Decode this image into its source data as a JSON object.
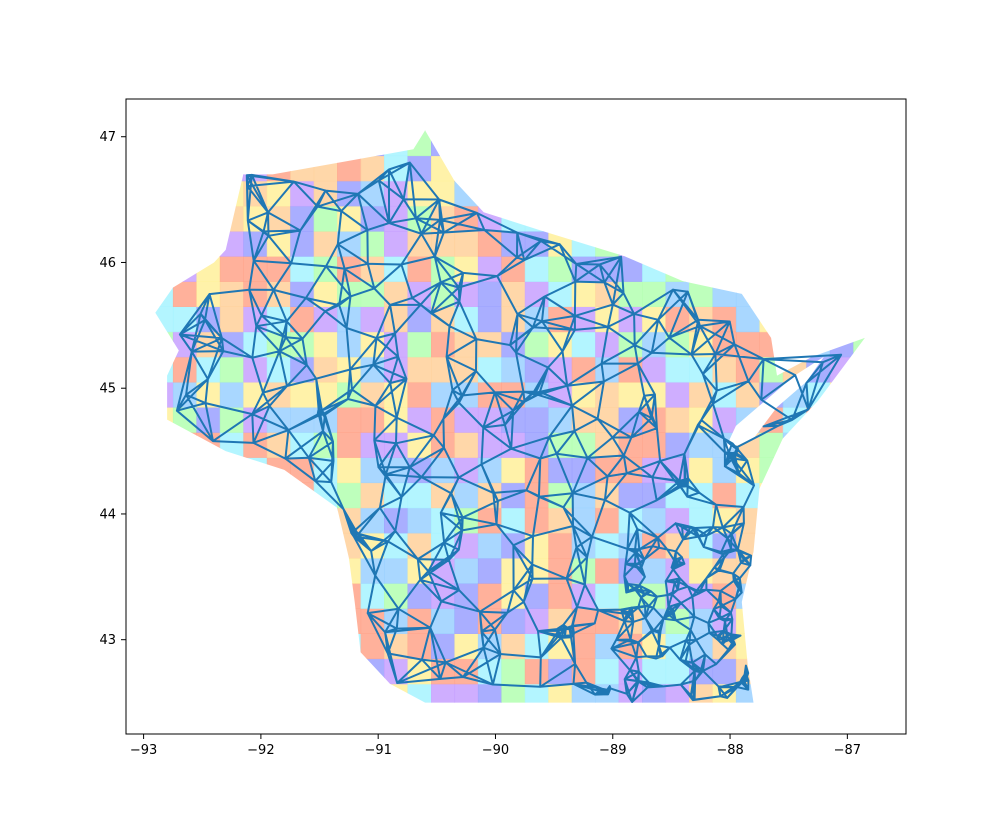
{
  "chart_data": {
    "type": "map",
    "title": "",
    "xlabel": "",
    "ylabel": "",
    "xlim": [
      -93.15,
      -86.5
    ],
    "ylim": [
      42.25,
      47.3
    ],
    "x_ticks": [
      -93,
      -92,
      -91,
      -90,
      -89,
      -88,
      -87
    ],
    "y_ticks": [
      43,
      44,
      45,
      46,
      47
    ],
    "x_tick_labels": [
      "−93",
      "−92",
      "−91",
      "−90",
      "−89",
      "−88",
      "−87"
    ],
    "y_tick_labels": [
      "43",
      "44",
      "45",
      "46",
      "47"
    ],
    "grid": false,
    "legend": "none",
    "edge_color": "#1f77b4",
    "fill_palette": [
      "#9aa0ff",
      "#a6f3ff",
      "#fff09a",
      "#ffa38a",
      "#b3ffb0",
      "#ffd09a",
      "#c7a0ff",
      "#9ad0ff"
    ],
    "state_outline": [
      [
        -92.9,
        45.6
      ],
      [
        -92.75,
        45.8
      ],
      [
        -92.4,
        46.0
      ],
      [
        -92.3,
        46.1
      ],
      [
        -92.15,
        46.7
      ],
      [
        -91.9,
        46.7
      ],
      [
        -91.3,
        46.8
      ],
      [
        -90.7,
        46.9
      ],
      [
        -90.6,
        47.05
      ],
      [
        -90.35,
        46.65
      ],
      [
        -90.1,
        46.4
      ],
      [
        -89.6,
        46.25
      ],
      [
        -88.9,
        46.05
      ],
      [
        -88.4,
        45.85
      ],
      [
        -87.9,
        45.75
      ],
      [
        -87.65,
        45.4
      ],
      [
        -87.6,
        45.1
      ],
      [
        -87.3,
        45.25
      ],
      [
        -86.85,
        45.4
      ],
      [
        -87.25,
        44.9
      ],
      [
        -87.55,
        44.6
      ],
      [
        -87.75,
        44.2
      ],
      [
        -87.8,
        43.7
      ],
      [
        -87.9,
        43.3
      ],
      [
        -87.85,
        42.8
      ],
      [
        -87.8,
        42.5
      ],
      [
        -88.8,
        42.5
      ],
      [
        -90.6,
        42.5
      ],
      [
        -90.9,
        42.65
      ],
      [
        -91.15,
        42.9
      ],
      [
        -91.2,
        43.3
      ],
      [
        -91.25,
        43.65
      ],
      [
        -91.35,
        44.05
      ],
      [
        -91.8,
        44.35
      ],
      [
        -92.3,
        44.5
      ],
      [
        -92.8,
        44.75
      ],
      [
        -92.8,
        45.1
      ],
      [
        -92.7,
        45.3
      ]
    ],
    "bay_outline": [
      [
        -88.05,
        44.5
      ],
      [
        -87.95,
        44.7
      ],
      [
        -87.7,
        44.9
      ],
      [
        -87.45,
        45.1
      ],
      [
        -87.2,
        45.25
      ],
      [
        -87.35,
        45.05
      ],
      [
        -87.6,
        44.85
      ],
      [
        -87.8,
        44.6
      ]
    ],
    "dense_clusters": [
      {
        "x": -88.0,
        "y": 43.0,
        "spread": 0.1
      },
      {
        "x": -89.4,
        "y": 43.07,
        "spread": 0.08
      },
      {
        "x": -88.0,
        "y": 44.5,
        "spread": 0.08
      },
      {
        "x": -87.85,
        "y": 42.7,
        "spread": 0.06
      },
      {
        "x": -89.05,
        "y": 42.6,
        "spread": 0.05
      },
      {
        "x": -91.5,
        "y": 44.8,
        "spread": 0.05
      },
      {
        "x": -88.4,
        "y": 44.25,
        "spread": 0.06
      },
      {
        "x": -91.2,
        "y": 43.85,
        "spread": 0.04
      },
      {
        "x": -92.1,
        "y": 46.7,
        "spread": 0.03
      },
      {
        "x": -89.65,
        "y": 44.95,
        "spread": 0.04
      },
      {
        "x": -87.75,
        "y": 43.75,
        "spread": 0.04
      }
    ]
  }
}
